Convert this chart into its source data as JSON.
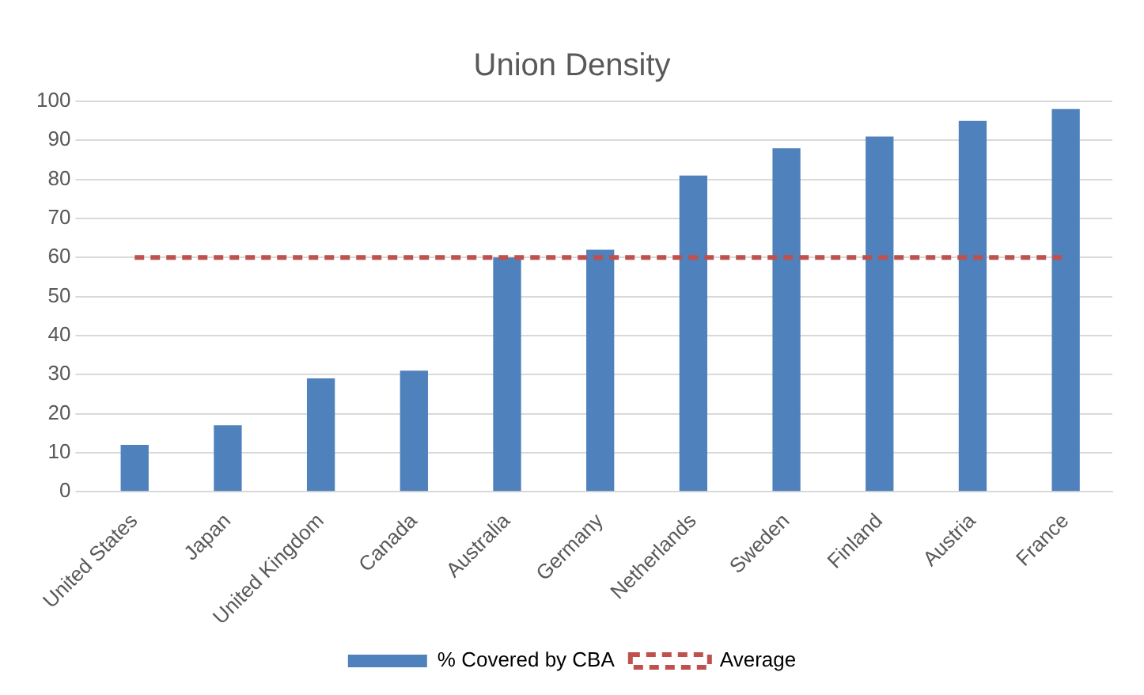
{
  "chart_data": {
    "type": "bar",
    "title": "Union Density",
    "categories": [
      "United States",
      "Japan",
      "United Kingdom",
      "Canada",
      "Australia",
      "Germany",
      "Netherlands",
      "Sweden",
      "Finland",
      "Austria",
      "France"
    ],
    "series": [
      {
        "name": "% Covered by CBA",
        "color": "#4f81bd",
        "values": [
          12,
          17,
          29,
          31,
          60,
          62,
          81,
          88,
          91,
          95,
          98
        ]
      },
      {
        "name": "Average",
        "type": "line",
        "color": "#c0504d",
        "line_style": "dashed",
        "marker": "none",
        "values": [
          60,
          60,
          60,
          60,
          60,
          60,
          60,
          60,
          60,
          60,
          60
        ]
      }
    ],
    "ylim": [
      0,
      100
    ],
    "yticks": [
      0,
      10,
      20,
      30,
      40,
      50,
      60,
      70,
      80,
      90,
      100
    ],
    "grid": "y",
    "legend": "bottom"
  }
}
